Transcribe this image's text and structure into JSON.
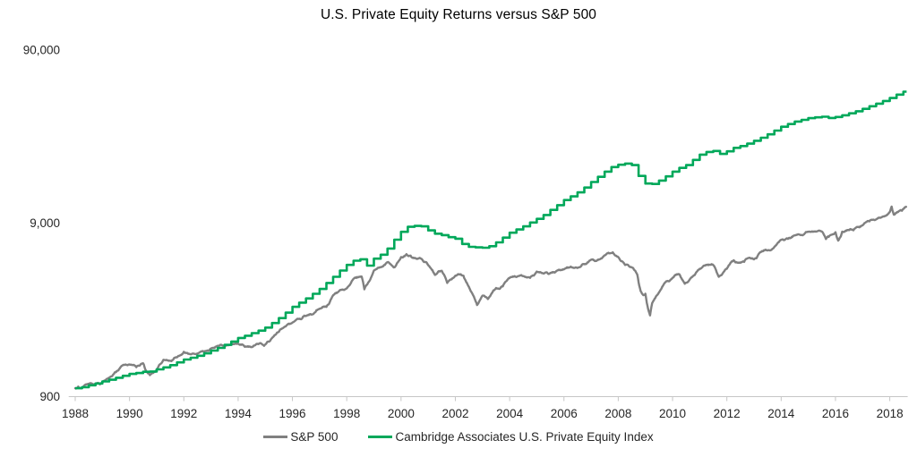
{
  "chart_data": {
    "type": "line",
    "title": "U.S. Private Equity Returns versus S&P 500",
    "background": "#ffffff",
    "axis_color": "#c6c6c6",
    "text_color": "#262626",
    "grid": false,
    "legend_position": "bottom-center",
    "y_axis": {
      "scale": "log",
      "range": [
        900,
        130000
      ],
      "ticks": [
        {
          "label": "900",
          "value": 900
        },
        {
          "label": "9,000",
          "value": 9000
        },
        {
          "label": "90,000",
          "value": 90000
        }
      ]
    },
    "x_axis": {
      "range": [
        1988,
        2018.66
      ],
      "ticks": [
        {
          "label": "1988",
          "year": 1988
        },
        {
          "label": "1990",
          "year": 1990
        },
        {
          "label": "1992",
          "year": 1992
        },
        {
          "label": "1994",
          "year": 1994
        },
        {
          "label": "1996",
          "year": 1996
        },
        {
          "label": "1998",
          "year": 1998
        },
        {
          "label": "2000",
          "year": 2000
        },
        {
          "label": "2002",
          "year": 2002
        },
        {
          "label": "2004",
          "year": 2004
        },
        {
          "label": "2006",
          "year": 2006
        },
        {
          "label": "2008",
          "year": 2008
        },
        {
          "label": "2010",
          "year": 2010
        },
        {
          "label": "2012",
          "year": 2012
        },
        {
          "label": "2014",
          "year": 2014
        },
        {
          "label": "2016",
          "year": 2016
        },
        {
          "label": "2018",
          "year": 2018
        }
      ]
    },
    "series": [
      {
        "name": "S&P 500",
        "color": "#808080",
        "style": "noisy-line",
        "points": [
          [
            1988.0,
            1000
          ],
          [
            1988.25,
            1008
          ],
          [
            1988.5,
            1062
          ],
          [
            1988.75,
            1058
          ],
          [
            1989.0,
            1081
          ],
          [
            1989.25,
            1148
          ],
          [
            1989.5,
            1237
          ],
          [
            1989.75,
            1358
          ],
          [
            1990.0,
            1373
          ],
          [
            1990.25,
            1323
          ],
          [
            1990.5,
            1393
          ],
          [
            1990.58,
            1285
          ],
          [
            1990.75,
            1190
          ],
          [
            1991.0,
            1284
          ],
          [
            1991.25,
            1459
          ],
          [
            1991.5,
            1443
          ],
          [
            1991.75,
            1509
          ],
          [
            1992.0,
            1622
          ],
          [
            1992.25,
            1572
          ],
          [
            1992.5,
            1587
          ],
          [
            1992.75,
            1626
          ],
          [
            1993.0,
            1696
          ],
          [
            1993.25,
            1758
          ],
          [
            1993.5,
            1751
          ],
          [
            1993.75,
            1786
          ],
          [
            1994.0,
            1813
          ],
          [
            1994.25,
            1735
          ],
          [
            1994.5,
            1727
          ],
          [
            1994.75,
            1797
          ],
          [
            1995.0,
            1786
          ],
          [
            1995.25,
            1949
          ],
          [
            1995.5,
            2116
          ],
          [
            1995.75,
            2272
          ],
          [
            1996.0,
            2396
          ],
          [
            1996.25,
            2509
          ],
          [
            1996.5,
            2610
          ],
          [
            1996.75,
            2672
          ],
          [
            1997.0,
            2882
          ],
          [
            1997.25,
            2945
          ],
          [
            1997.5,
            3443
          ],
          [
            1997.75,
            3684
          ],
          [
            1998.0,
            3773
          ],
          [
            1998.25,
            4283
          ],
          [
            1998.55,
            4411
          ],
          [
            1998.65,
            3723
          ],
          [
            1998.75,
            3956
          ],
          [
            1999.0,
            4781
          ],
          [
            1999.25,
            5003
          ],
          [
            1999.5,
            5341
          ],
          [
            1999.75,
            4991
          ],
          [
            2000.0,
            5714
          ],
          [
            2000.2,
            5940
          ],
          [
            2000.35,
            5831
          ],
          [
            2000.5,
            5660
          ],
          [
            2000.75,
            5586
          ],
          [
            2001.0,
            5135
          ],
          [
            2001.25,
            4512
          ],
          [
            2001.5,
            4761
          ],
          [
            2001.7,
            4050
          ],
          [
            2002.0,
            4466
          ],
          [
            2002.3,
            4462
          ],
          [
            2002.5,
            3851
          ],
          [
            2002.75,
            3170
          ],
          [
            2002.8,
            3022
          ],
          [
            2003.0,
            3423
          ],
          [
            2003.2,
            3271
          ],
          [
            2003.5,
            3793
          ],
          [
            2003.75,
            3874
          ],
          [
            2004.0,
            4326
          ],
          [
            2004.25,
            4380
          ],
          [
            2004.5,
            4439
          ],
          [
            2004.75,
            4337
          ],
          [
            2005.0,
            4715
          ],
          [
            2005.25,
            4594
          ],
          [
            2005.5,
            4633
          ],
          [
            2005.75,
            4781
          ],
          [
            2006.0,
            4855
          ],
          [
            2006.25,
            5038
          ],
          [
            2006.5,
            4940
          ],
          [
            2006.75,
            5197
          ],
          [
            2007.0,
            5516
          ],
          [
            2007.25,
            5528
          ],
          [
            2007.5,
            5847
          ],
          [
            2007.8,
            6088
          ],
          [
            2008.0,
            5711
          ],
          [
            2008.25,
            5146
          ],
          [
            2008.5,
            4979
          ],
          [
            2008.7,
            4536
          ],
          [
            2008.8,
            3769
          ],
          [
            2008.9,
            3485
          ],
          [
            2009.0,
            3513
          ],
          [
            2009.1,
            2859
          ],
          [
            2009.17,
            2633
          ],
          [
            2009.25,
            3104
          ],
          [
            2009.5,
            3575
          ],
          [
            2009.75,
            4112
          ],
          [
            2010.0,
            4337
          ],
          [
            2010.25,
            4547
          ],
          [
            2010.45,
            4011
          ],
          [
            2010.75,
            4438
          ],
          [
            2011.0,
            4893
          ],
          [
            2011.25,
            5158
          ],
          [
            2011.5,
            5139
          ],
          [
            2011.7,
            4400
          ],
          [
            2012.0,
            4893
          ],
          [
            2012.25,
            5477
          ],
          [
            2012.5,
            5298
          ],
          [
            2012.75,
            5606
          ],
          [
            2013.0,
            5547
          ],
          [
            2013.25,
            6103
          ],
          [
            2013.5,
            6247
          ],
          [
            2013.75,
            6543
          ],
          [
            2014.0,
            7189
          ],
          [
            2014.25,
            7282
          ],
          [
            2014.5,
            7624
          ],
          [
            2014.75,
            7671
          ],
          [
            2015.0,
            8006
          ],
          [
            2015.25,
            8044
          ],
          [
            2015.5,
            8025
          ],
          [
            2015.65,
            7263
          ],
          [
            2015.75,
            7469
          ],
          [
            2016.0,
            7951
          ],
          [
            2016.1,
            7115
          ],
          [
            2016.25,
            8013
          ],
          [
            2016.5,
            8165
          ],
          [
            2016.75,
            8433
          ],
          [
            2017.0,
            8710
          ],
          [
            2017.25,
            9192
          ],
          [
            2017.5,
            9425
          ],
          [
            2017.75,
            9799
          ],
          [
            2018.0,
            10402
          ],
          [
            2018.07,
            11176
          ],
          [
            2018.15,
            10040
          ],
          [
            2018.3,
            10380
          ],
          [
            2018.45,
            10573
          ],
          [
            2018.6,
            11150
          ]
        ]
      },
      {
        "name": "Cambridge Associates U.S. Private Equity Index",
        "color": "#00a85a",
        "style": "step",
        "points": [
          [
            1988.0,
            1000
          ],
          [
            1988.25,
            1015
          ],
          [
            1988.5,
            1040
          ],
          [
            1988.75,
            1065
          ],
          [
            1989.0,
            1095
          ],
          [
            1989.25,
            1120
          ],
          [
            1989.5,
            1150
          ],
          [
            1989.75,
            1180
          ],
          [
            1990.0,
            1210
          ],
          [
            1990.25,
            1225
          ],
          [
            1990.5,
            1245
          ],
          [
            1990.75,
            1250
          ],
          [
            1991.0,
            1285
          ],
          [
            1991.25,
            1320
          ],
          [
            1991.5,
            1360
          ],
          [
            1991.75,
            1410
          ],
          [
            1992.0,
            1465
          ],
          [
            1992.25,
            1500
          ],
          [
            1992.5,
            1540
          ],
          [
            1992.75,
            1590
          ],
          [
            1993.0,
            1650
          ],
          [
            1993.25,
            1710
          ],
          [
            1993.5,
            1780
          ],
          [
            1993.75,
            1860
          ],
          [
            1994.0,
            1950
          ],
          [
            1994.25,
            2010
          ],
          [
            1994.5,
            2080
          ],
          [
            1994.75,
            2150
          ],
          [
            1995.0,
            2240
          ],
          [
            1995.25,
            2380
          ],
          [
            1995.5,
            2540
          ],
          [
            1995.75,
            2730
          ],
          [
            1996.0,
            2950
          ],
          [
            1996.25,
            3120
          ],
          [
            1996.5,
            3300
          ],
          [
            1996.75,
            3510
          ],
          [
            1997.0,
            3740
          ],
          [
            1997.25,
            4050
          ],
          [
            1997.5,
            4400
          ],
          [
            1997.75,
            4780
          ],
          [
            1998.0,
            5150
          ],
          [
            1998.25,
            5450
          ],
          [
            1998.5,
            5550
          ],
          [
            1998.75,
            5100
          ],
          [
            1999.0,
            5600
          ],
          [
            1999.25,
            5900
          ],
          [
            1999.5,
            6400
          ],
          [
            1999.75,
            7200
          ],
          [
            2000.0,
            8000
          ],
          [
            2000.25,
            8550
          ],
          [
            2000.5,
            8650
          ],
          [
            2000.75,
            8600
          ],
          [
            2001.0,
            8150
          ],
          [
            2001.25,
            7800
          ],
          [
            2001.5,
            7650
          ],
          [
            2001.75,
            7450
          ],
          [
            2002.0,
            7300
          ],
          [
            2002.25,
            6800
          ],
          [
            2002.5,
            6550
          ],
          [
            2002.75,
            6500
          ],
          [
            2003.0,
            6470
          ],
          [
            2003.25,
            6600
          ],
          [
            2003.5,
            6950
          ],
          [
            2003.75,
            7400
          ],
          [
            2004.0,
            7900
          ],
          [
            2004.25,
            8250
          ],
          [
            2004.5,
            8600
          ],
          [
            2004.75,
            9050
          ],
          [
            2005.0,
            9500
          ],
          [
            2005.25,
            10000
          ],
          [
            2005.5,
            10700
          ],
          [
            2005.75,
            11400
          ],
          [
            2006.0,
            12200
          ],
          [
            2006.25,
            12800
          ],
          [
            2006.5,
            13500
          ],
          [
            2006.75,
            14400
          ],
          [
            2007.0,
            15500
          ],
          [
            2007.25,
            16600
          ],
          [
            2007.5,
            17800
          ],
          [
            2007.75,
            18900
          ],
          [
            2008.0,
            19500
          ],
          [
            2008.25,
            19800
          ],
          [
            2008.5,
            19400
          ],
          [
            2008.75,
            16800
          ],
          [
            2009.0,
            15200
          ],
          [
            2009.25,
            15100
          ],
          [
            2009.5,
            15800
          ],
          [
            2009.75,
            16700
          ],
          [
            2010.0,
            17800
          ],
          [
            2010.25,
            18700
          ],
          [
            2010.5,
            19400
          ],
          [
            2010.75,
            20800
          ],
          [
            2011.0,
            22300
          ],
          [
            2011.25,
            23100
          ],
          [
            2011.5,
            23400
          ],
          [
            2011.75,
            22500
          ],
          [
            2012.0,
            23300
          ],
          [
            2012.25,
            24400
          ],
          [
            2012.5,
            25000
          ],
          [
            2012.75,
            25800
          ],
          [
            2013.0,
            26800
          ],
          [
            2013.25,
            27900
          ],
          [
            2013.5,
            29200
          ],
          [
            2013.75,
            30700
          ],
          [
            2014.0,
            32300
          ],
          [
            2014.25,
            33500
          ],
          [
            2014.5,
            34600
          ],
          [
            2014.75,
            35400
          ],
          [
            2015.0,
            36200
          ],
          [
            2015.25,
            36600
          ],
          [
            2015.5,
            36900
          ],
          [
            2015.75,
            36300
          ],
          [
            2016.0,
            36800
          ],
          [
            2016.25,
            37600
          ],
          [
            2016.5,
            38600
          ],
          [
            2016.75,
            39700
          ],
          [
            2017.0,
            41000
          ],
          [
            2017.25,
            42400
          ],
          [
            2017.5,
            43900
          ],
          [
            2017.75,
            45500
          ],
          [
            2018.0,
            47300
          ],
          [
            2018.25,
            49500
          ],
          [
            2018.5,
            51500
          ]
        ]
      }
    ]
  }
}
